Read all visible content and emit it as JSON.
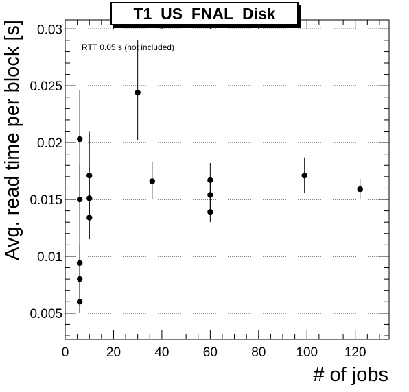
{
  "chart_data": {
    "type": "scatter",
    "title": "T1_US_FNAL_Disk",
    "xlabel": "# of jobs",
    "ylabel": "Avg. read time per block [s]",
    "annotation": "RTT 0.05 s (not included)",
    "xlim": [
      0,
      134
    ],
    "ylim": [
      0.0027,
      0.0308
    ],
    "x_ticks": [
      0,
      20,
      40,
      60,
      80,
      100,
      120
    ],
    "x_tick_labels": [
      "0",
      "20",
      "40",
      "60",
      "80",
      "100",
      "120"
    ],
    "y_ticks": [
      0.005,
      0.01,
      0.015,
      0.02,
      0.025,
      0.03
    ],
    "y_tick_labels": [
      "0.005",
      "0.01",
      "0.015",
      "0.02",
      "0.025",
      "0.03"
    ],
    "grid": "horizontal dotted",
    "series": [
      {
        "points": [
          {
            "x": 6,
            "y": 0.0203,
            "yerr_low": 0.015,
            "yerr_high": 0.0246
          },
          {
            "x": 6,
            "y": 0.015,
            "yerr_low": 0.005,
            "yerr_high": 0.018
          },
          {
            "x": 6,
            "y": 0.0094,
            "yerr_low": 0.006,
            "yerr_high": 0.011
          },
          {
            "x": 6,
            "y": 0.008,
            "yerr_low": 0.006,
            "yerr_high": 0.0094
          },
          {
            "x": 6,
            "y": 0.006,
            "yerr_low": 0.005,
            "yerr_high": 0.008
          },
          {
            "x": 10,
            "y": 0.0171,
            "yerr_low": 0.0134,
            "yerr_high": 0.021
          },
          {
            "x": 10,
            "y": 0.0151,
            "yerr_low": 0.0115,
            "yerr_high": 0.0171
          },
          {
            "x": 10,
            "y": 0.0134,
            "yerr_low": 0.0115,
            "yerr_high": 0.0151
          },
          {
            "x": 30,
            "y": 0.0244,
            "yerr_low": 0.0202,
            "yerr_high": 0.029
          },
          {
            "x": 36,
            "y": 0.0166,
            "yerr_low": 0.015,
            "yerr_high": 0.0183
          },
          {
            "x": 60,
            "y": 0.0167,
            "yerr_low": 0.0154,
            "yerr_high": 0.0182
          },
          {
            "x": 60,
            "y": 0.0154,
            "yerr_low": 0.014,
            "yerr_high": 0.0167
          },
          {
            "x": 60,
            "y": 0.0139,
            "yerr_low": 0.013,
            "yerr_high": 0.0154
          },
          {
            "x": 99,
            "y": 0.0171,
            "yerr_low": 0.0156,
            "yerr_high": 0.0187
          },
          {
            "x": 122,
            "y": 0.0159,
            "yerr_low": 0.015,
            "yerr_high": 0.0168
          }
        ]
      }
    ]
  }
}
